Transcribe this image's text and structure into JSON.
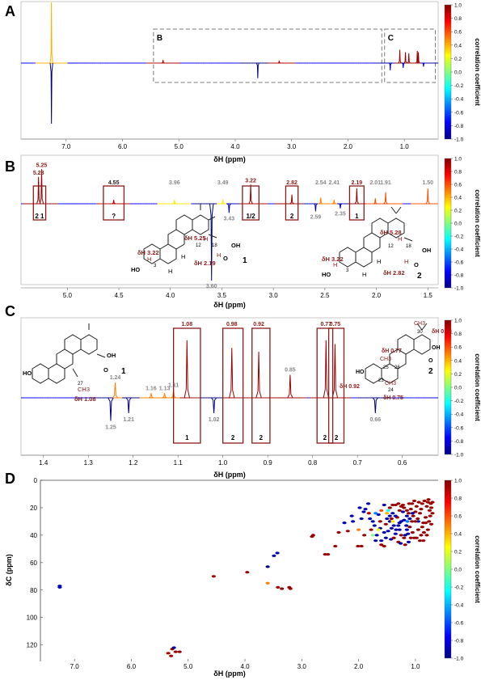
{
  "colorbar": {
    "label": "correlation coefficient",
    "ticks": [
      "1.0",
      "0.8",
      "0.6",
      "0.4",
      "0.2",
      "0.0",
      "-0.2",
      "-0.4",
      "-0.6",
      "-0.8",
      "-1.0"
    ],
    "stops": [
      "#000080",
      "#0000ff",
      "#0080ff",
      "#00ffff",
      "#80ff80",
      "#ffff00",
      "#ff8000",
      "#ff0000",
      "#800000"
    ]
  },
  "chart_data": [
    {
      "panel": "A",
      "type": "line",
      "xlabel": "δH (ppm)",
      "xlim": [
        7.8,
        0.4
      ],
      "x_ticks": [
        "7.0",
        "6.0",
        "5.0",
        "4.0",
        "3.0",
        "2.0",
        "1.0"
      ],
      "zoom_boxes": [
        {
          "label": "B",
          "x_range": [
            5.45,
            1.4
          ]
        },
        {
          "label": "C",
          "x_range": [
            1.35,
            0.45
          ]
        }
      ],
      "peaks": [
        {
          "x": 7.26,
          "y": 1.0,
          "r": 0.4
        },
        {
          "x": 7.26,
          "y": -1.0,
          "r": -1.0
        },
        {
          "x": 5.28,
          "y": 0.05,
          "r": 0.9
        },
        {
          "x": 3.6,
          "y": -0.25,
          "r": -1.0
        },
        {
          "x": 3.22,
          "y": 0.04,
          "r": 0.9
        },
        {
          "x": 1.08,
          "y": 0.22,
          "r": 0.95
        },
        {
          "x": 0.98,
          "y": 0.18,
          "r": 0.95
        },
        {
          "x": 0.92,
          "y": 0.16,
          "r": 0.95
        },
        {
          "x": 0.77,
          "y": 0.2,
          "r": 0.95
        },
        {
          "x": 0.75,
          "y": 0.18,
          "r": 0.95
        },
        {
          "x": 1.25,
          "y": -0.12,
          "r": -0.9
        },
        {
          "x": 1.02,
          "y": -0.08,
          "r": -0.9
        },
        {
          "x": 0.66,
          "y": -0.06,
          "r": -0.9
        }
      ]
    },
    {
      "panel": "B",
      "type": "line",
      "xlabel": "δH (ppm)",
      "xlim": [
        5.45,
        1.4
      ],
      "x_ticks": [
        "5.0",
        "4.5",
        "4.0",
        "3.5",
        "3.0",
        "2.5",
        "2.0",
        "1.5"
      ],
      "peaks": [
        {
          "x": 5.28,
          "y": 0.35,
          "r": 0.95,
          "label": "5.28",
          "tone": "red"
        },
        {
          "x": 5.25,
          "y": 0.45,
          "r": 0.95,
          "label": "5.25",
          "tone": "red"
        },
        {
          "x": 4.55,
          "y": 0.05,
          "r": 0.9,
          "label": "4.55",
          "tone": "dark"
        },
        {
          "x": 3.96,
          "y": 0.05,
          "r": 0.3,
          "label": "3.96",
          "tone": "gray"
        },
        {
          "x": 3.49,
          "y": 0.06,
          "r": 0.3,
          "label": "3.49",
          "tone": "gray"
        },
        {
          "x": 3.43,
          "y": -0.12,
          "r": -0.9,
          "label": "3.43",
          "tone": "gray"
        },
        {
          "x": 3.6,
          "y": -1.0,
          "r": -1.0,
          "label": "3.60",
          "tone": "gray"
        },
        {
          "x": 3.22,
          "y": 0.25,
          "r": 0.95,
          "label": "3.22",
          "tone": "red"
        },
        {
          "x": 2.82,
          "y": 0.12,
          "r": 0.95,
          "label": "2.82",
          "tone": "red"
        },
        {
          "x": 2.59,
          "y": -0.1,
          "r": -0.9,
          "label": "2.59",
          "tone": "gray"
        },
        {
          "x": 2.54,
          "y": 0.08,
          "r": 0.5,
          "label": "2.54",
          "tone": "gray"
        },
        {
          "x": 2.41,
          "y": 0.05,
          "r": 0.5,
          "label": "2.41",
          "tone": "gray"
        },
        {
          "x": 2.35,
          "y": -0.06,
          "r": -0.9,
          "label": "2.35",
          "tone": "gray"
        },
        {
          "x": 2.19,
          "y": 0.2,
          "r": 0.95,
          "label": "2.19",
          "tone": "red"
        },
        {
          "x": 2.01,
          "y": 0.07,
          "r": 0.6,
          "label": "2.01",
          "tone": "gray"
        },
        {
          "x": 1.91,
          "y": 0.15,
          "r": 0.6,
          "label": "1.91",
          "tone": "gray"
        },
        {
          "x": 1.5,
          "y": 0.2,
          "r": 0.6,
          "label": "1.50",
          "tone": "gray"
        }
      ],
      "boxes": [
        {
          "x_range": [
            5.33,
            5.21
          ],
          "label": "2 1"
        },
        {
          "x_range": [
            4.65,
            4.45
          ],
          "label": "?"
        },
        {
          "x_range": [
            3.3,
            3.14
          ],
          "label": "1/2"
        },
        {
          "x_range": [
            2.88,
            2.76
          ],
          "label": "2"
        },
        {
          "x_range": [
            2.26,
            2.12
          ],
          "label": "1"
        }
      ]
    },
    {
      "panel": "C",
      "type": "line",
      "xlabel": "δH (ppm)",
      "xlim": [
        1.45,
        0.52
      ],
      "x_ticks": [
        "1.4",
        "1.3",
        "1.2",
        "1.1",
        "1.0",
        "0.9",
        "0.8",
        "0.7",
        "0.6"
      ],
      "peaks": [
        {
          "x": 1.08,
          "y": 0.75,
          "r": 0.95,
          "label": "1.08",
          "tone": "red"
        },
        {
          "x": 0.98,
          "y": 0.65,
          "r": 0.95,
          "label": "0.98",
          "tone": "red"
        },
        {
          "x": 0.92,
          "y": 0.6,
          "r": 0.95,
          "label": "0.92",
          "tone": "red"
        },
        {
          "x": 0.77,
          "y": 0.75,
          "r": 0.95,
          "label": "0.77",
          "tone": "red"
        },
        {
          "x": 0.75,
          "y": 0.7,
          "r": 0.95,
          "label": "0.75",
          "tone": "red"
        },
        {
          "x": 0.85,
          "y": 0.3,
          "r": 0.95,
          "label": "0.85",
          "tone": "gray"
        },
        {
          "x": 1.24,
          "y": 0.2,
          "r": 0.5,
          "label": "1.24",
          "tone": "gray"
        },
        {
          "x": 1.16,
          "y": 0.06,
          "r": 0.5,
          "label": "1.16",
          "tone": "gray"
        },
        {
          "x": 1.13,
          "y": 0.06,
          "r": 0.5,
          "label": "1.13",
          "tone": "gray"
        },
        {
          "x": 1.11,
          "y": 0.1,
          "r": 0.5,
          "label": "1.11",
          "tone": "gray"
        },
        {
          "x": 1.25,
          "y": -0.3,
          "r": -1.0,
          "label": "1.25",
          "tone": "gray"
        },
        {
          "x": 1.21,
          "y": -0.2,
          "r": -1.0,
          "label": "1.21",
          "tone": "gray"
        },
        {
          "x": 1.02,
          "y": -0.2,
          "r": -1.0,
          "label": "1.02",
          "tone": "gray"
        },
        {
          "x": 0.66,
          "y": -0.2,
          "r": -1.0,
          "label": "0.66",
          "tone": "gray"
        }
      ],
      "boxes": [
        {
          "x_range": [
            1.11,
            1.05
          ],
          "label": "1"
        },
        {
          "x_range": [
            1.0,
            0.955
          ],
          "label": "2"
        },
        {
          "x_range": [
            0.935,
            0.895
          ],
          "label": "2"
        },
        {
          "x_range": [
            0.79,
            0.755
          ],
          "label": "2"
        },
        {
          "x_range": [
            0.764,
            0.73
          ],
          "label": "2"
        }
      ]
    },
    {
      "panel": "D",
      "type": "scatter",
      "xlabel": "δH (ppm)",
      "ylabel": "δC (ppm)",
      "xlim": [
        7.6,
        0.6
      ],
      "ylim": [
        0,
        132
      ],
      "x_ticks": [
        "7.0",
        "6.0",
        "5.0",
        "4.0",
        "3.0",
        "2.0",
        "1.0"
      ],
      "y_ticks": [
        "0",
        "20",
        "40",
        "60",
        "80",
        "100",
        "120"
      ],
      "points": [
        [
          7.26,
          77,
          -0.9
        ],
        [
          7.26,
          78,
          -0.9
        ],
        [
          5.28,
          123,
          0.95
        ],
        [
          5.25,
          122,
          -0.9
        ],
        [
          5.22,
          125,
          0.95
        ],
        [
          5.35,
          126,
          0.9
        ],
        [
          5.15,
          125,
          0.95
        ],
        [
          5.3,
          128,
          0.95
        ],
        [
          4.55,
          70,
          0.95
        ],
        [
          3.96,
          67,
          0.95
        ],
        [
          3.6,
          63,
          -1.0
        ],
        [
          3.49,
          55,
          -0.9
        ],
        [
          3.43,
          53,
          -0.9
        ],
        [
          3.6,
          75,
          0.5
        ],
        [
          3.42,
          78,
          0.95
        ],
        [
          3.22,
          78,
          0.95
        ],
        [
          3.2,
          79,
          0.95
        ],
        [
          3.35,
          79,
          0.95
        ],
        [
          2.82,
          41,
          0.95
        ],
        [
          2.8,
          40,
          0.95
        ],
        [
          2.59,
          54,
          0.95
        ],
        [
          2.54,
          54,
          0.95
        ],
        [
          2.41,
          48,
          0.95
        ],
        [
          2.35,
          38,
          0.95
        ],
        [
          2.25,
          31,
          -0.9
        ],
        [
          2.19,
          37,
          0.95
        ],
        [
          2.12,
          26,
          -0.9
        ],
        [
          2.01,
          48,
          0.95
        ],
        [
          1.95,
          48,
          0.95
        ],
        [
          1.91,
          23,
          -0.9
        ],
        [
          1.88,
          21,
          -0.9
        ],
        [
          1.83,
          17,
          -0.9
        ],
        [
          1.8,
          28,
          -0.9
        ],
        [
          1.75,
          30,
          -0.9
        ],
        [
          1.72,
          33,
          -0.9
        ],
        [
          1.68,
          40,
          -0.9
        ],
        [
          1.65,
          25,
          -0.9
        ],
        [
          1.62,
          35,
          -0.9
        ],
        [
          1.6,
          47,
          0.95
        ],
        [
          1.55,
          48,
          0.95
        ],
        [
          1.52,
          42,
          -0.9
        ],
        [
          1.5,
          28,
          -0.9
        ],
        [
          1.48,
          37,
          -0.9
        ],
        [
          1.45,
          30,
          -0.9
        ],
        [
          1.43,
          43,
          -0.9
        ],
        [
          1.4,
          24,
          -0.9
        ],
        [
          1.38,
          33,
          -0.9
        ],
        [
          1.35,
          39,
          -0.9
        ],
        [
          1.32,
          27,
          0.95
        ],
        [
          1.3,
          45,
          0.95
        ],
        [
          1.28,
          36,
          -0.9
        ],
        [
          1.25,
          30,
          -0.9
        ],
        [
          1.22,
          23,
          -0.9
        ],
        [
          1.2,
          42,
          0.95
        ],
        [
          1.18,
          47,
          0.95
        ],
        [
          1.16,
          33,
          -0.9
        ],
        [
          1.13,
          39,
          -0.9
        ],
        [
          1.11,
          17,
          0.95
        ],
        [
          1.1,
          28,
          -0.9
        ],
        [
          1.08,
          21,
          0.95
        ],
        [
          1.06,
          17,
          0.95
        ],
        [
          1.04,
          26,
          0.95
        ],
        [
          1.02,
          15,
          0.95
        ],
        [
          1.0,
          23,
          0.95
        ],
        [
          0.98,
          19,
          0.95
        ],
        [
          0.96,
          28,
          0.95
        ],
        [
          0.94,
          16,
          0.95
        ],
        [
          0.92,
          24,
          0.95
        ],
        [
          0.9,
          21,
          0.95
        ],
        [
          0.88,
          17,
          0.95
        ],
        [
          0.86,
          31,
          0.95
        ],
        [
          0.84,
          15,
          0.95
        ],
        [
          0.82,
          27,
          0.95
        ],
        [
          0.8,
          19,
          0.95
        ],
        [
          0.78,
          16,
          0.95
        ],
        [
          0.77,
          14,
          0.95
        ],
        [
          0.75,
          22,
          0.95
        ],
        [
          0.73,
          17,
          0.95
        ],
        [
          1.45,
          20,
          0.95
        ],
        [
          1.4,
          18,
          0.95
        ],
        [
          1.35,
          18,
          0.95
        ],
        [
          1.3,
          17,
          0.95
        ],
        [
          1.28,
          22,
          0.95
        ],
        [
          1.25,
          19,
          0.95
        ],
        [
          1.22,
          18,
          0.95
        ],
        [
          1.2,
          20,
          0.95
        ],
        [
          1.15,
          22,
          0.95
        ],
        [
          1.12,
          24,
          0.95
        ],
        [
          1.5,
          24,
          0.4
        ],
        [
          1.6,
          22,
          0.6
        ],
        [
          1.7,
          24,
          -0.5
        ],
        [
          1.55,
          18,
          -0.9
        ],
        [
          1.45,
          26,
          -0.9
        ],
        [
          1.35,
          26,
          -0.9
        ],
        [
          1.42,
          35,
          -0.9
        ],
        [
          1.3,
          33,
          -0.9
        ],
        [
          1.2,
          29,
          -0.9
        ],
        [
          1.15,
          36,
          -0.9
        ],
        [
          1.25,
          40,
          0.95
        ],
        [
          1.1,
          34,
          0.95
        ],
        [
          1.05,
          38,
          0.95
        ],
        [
          0.95,
          36,
          0.95
        ],
        [
          0.9,
          40,
          0.95
        ],
        [
          1.02,
          42,
          0.95
        ],
        [
          0.85,
          38,
          0.95
        ],
        [
          0.95,
          30,
          -0.9
        ],
        [
          0.88,
          34,
          0.95
        ],
        [
          0.82,
          31,
          0.95
        ],
        [
          1.0,
          30,
          0.95
        ],
        [
          1.06,
          30,
          0.95
        ],
        [
          1.14,
          30,
          -0.5
        ],
        [
          1.28,
          31,
          -0.9
        ],
        [
          1.38,
          42,
          0.95
        ],
        [
          1.62,
          30,
          0.95
        ],
        [
          1.78,
          36,
          0.95
        ],
        [
          1.9,
          40,
          0.95
        ],
        [
          2.0,
          36,
          0.5
        ],
        [
          2.1,
          30,
          -0.9
        ],
        [
          1.55,
          38,
          -0.9
        ],
        [
          1.6,
          44,
          -0.9
        ],
        [
          1.7,
          44,
          -0.9
        ],
        [
          1.82,
          24,
          0.9
        ],
        [
          1.95,
          28,
          -0.9
        ],
        [
          1.98,
          20,
          -0.9
        ],
        [
          1.52,
          32,
          0.95
        ],
        [
          1.42,
          28,
          0.95
        ],
        [
          1.34,
          36,
          -0.9
        ],
        [
          1.26,
          46,
          -0.9
        ],
        [
          1.18,
          40,
          -0.9
        ],
        [
          1.12,
          45,
          -0.9
        ],
        [
          1.08,
          42,
          0.95
        ],
        [
          0.98,
          42,
          0.95
        ],
        [
          0.92,
          44,
          0.95
        ],
        [
          0.86,
          44,
          0.95
        ],
        [
          0.8,
          40,
          0.95
        ],
        [
          0.78,
          36,
          0.95
        ],
        [
          0.76,
          30,
          0.95
        ],
        [
          0.74,
          26,
          0.95
        ],
        [
          0.72,
          20,
          0.95
        ],
        [
          0.7,
          16,
          0.95
        ],
        [
          0.7,
          24,
          0.95
        ],
        [
          0.72,
          32,
          0.95
        ],
        [
          1.65,
          36,
          0.2
        ],
        [
          1.75,
          40,
          0.0
        ],
        [
          1.48,
          22,
          -0.2
        ],
        [
          1.4,
          30,
          0.3
        ],
        [
          1.15,
          26,
          -0.9
        ],
        [
          1.05,
          24,
          -0.9
        ]
      ]
    }
  ],
  "panel_labels": [
    "A",
    "B",
    "C",
    "D"
  ],
  "structures": [
    {
      "panel": "B",
      "compound": "1",
      "annotations": [
        "δH 5.25",
        "δH 3.22",
        "δH 2.19"
      ],
      "atoms": [
        "12",
        "18",
        "3",
        "H",
        "H",
        "H",
        "H",
        "H",
        "HO",
        "OH",
        "O"
      ]
    },
    {
      "panel": "B",
      "compound": "2",
      "annotations": [
        "δH 5.28",
        "δH 3.22",
        "δH 2.82"
      ],
      "atoms": [
        "12",
        "18",
        "3",
        "H",
        "H",
        "H",
        "H",
        "H",
        "HO",
        "OH",
        "O"
      ]
    },
    {
      "panel": "C",
      "compound": "1",
      "annotations": [
        "δH 1.08"
      ],
      "atoms": [
        "27",
        "CH3",
        "HO",
        "OH",
        "O"
      ]
    },
    {
      "panel": "C",
      "compound": "2",
      "annotations": [
        "δH 0.98",
        "δH 0.77",
        "δH 0.92",
        "δH 0.75"
      ],
      "atoms": [
        "CH3",
        "CH3",
        "CH3",
        "30",
        "24",
        "25",
        "26",
        "23",
        "HO",
        "OH",
        "O"
      ]
    }
  ]
}
